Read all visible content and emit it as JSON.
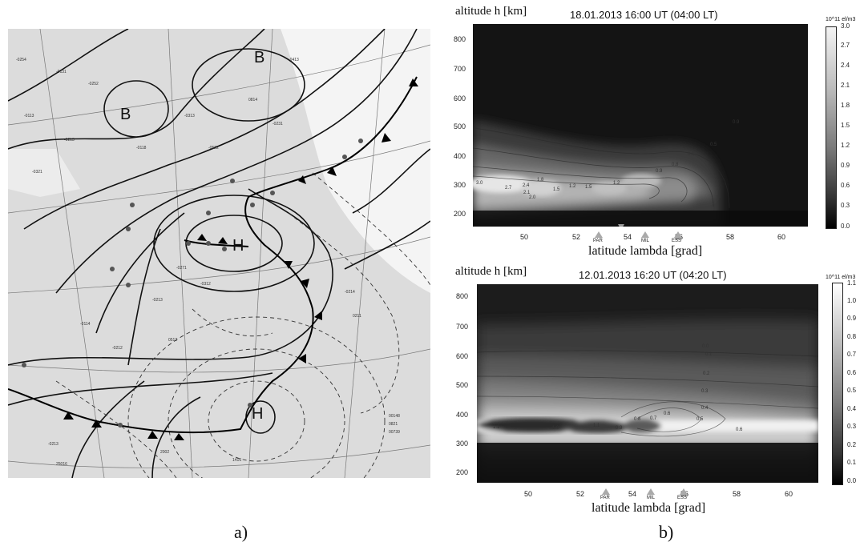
{
  "panels": {
    "a_label": "a)",
    "b_label": "b)"
  },
  "map": {
    "pressure_letters": [
      "B",
      "B",
      "H",
      "H"
    ]
  },
  "plot_top": {
    "ylabel": "altitude h [km]",
    "title": "18.01.2013 16:00 UT (04:00 LT)",
    "xlabel": "latitude lambda [grad]",
    "colorbar_unit": "10^11 el/m3",
    "colorbar_ticks": [
      "3.0",
      "2.7",
      "2.4",
      "2.1",
      "1.8",
      "1.5",
      "1.2",
      "0.9",
      "0.6",
      "0.3",
      "0.0"
    ],
    "y_ticks": [
      "800",
      "700",
      "600",
      "500",
      "400",
      "300",
      "200"
    ],
    "x_ticks": [
      "50",
      "52",
      "54",
      "56",
      "58",
      "60"
    ],
    "stations": [
      "PAR",
      "MIL",
      "ESS"
    ],
    "contour_labels": [
      "3.0",
      "2.7",
      "2.4",
      "2.1",
      "2.0",
      "1.8",
      "1.5",
      "1.2",
      "1.5",
      "1.2",
      "0.9",
      "0.8",
      "0.6",
      "0.5",
      "0.9"
    ]
  },
  "plot_bottom": {
    "ylabel": "altitude h [km]",
    "title": "12.01.2013 16:20 UT (04:20 LT)",
    "xlabel": "latitude lambda [grad]",
    "colorbar_unit": "10^11 el/m3",
    "colorbar_ticks": [
      "1.1",
      "1.0",
      "0.9",
      "0.8",
      "0.7",
      "0.6",
      "0.5",
      "0.4",
      "0.3",
      "0.2",
      "0.1",
      "0.0"
    ],
    "y_ticks": [
      "800",
      "700",
      "600",
      "500",
      "400",
      "300",
      "200"
    ],
    "x_ticks": [
      "50",
      "52",
      "54",
      "56",
      "58",
      "60"
    ],
    "stations": [
      "PAR",
      "MIL",
      "ESS"
    ],
    "contour_labels": [
      "0.0",
      "0.1",
      "0.2",
      "0.3",
      "0.4",
      "0.6",
      "0.8",
      "0.9",
      "0.7",
      "1.1",
      "1.0",
      "1.1",
      "0.5",
      "0.6"
    ]
  }
}
